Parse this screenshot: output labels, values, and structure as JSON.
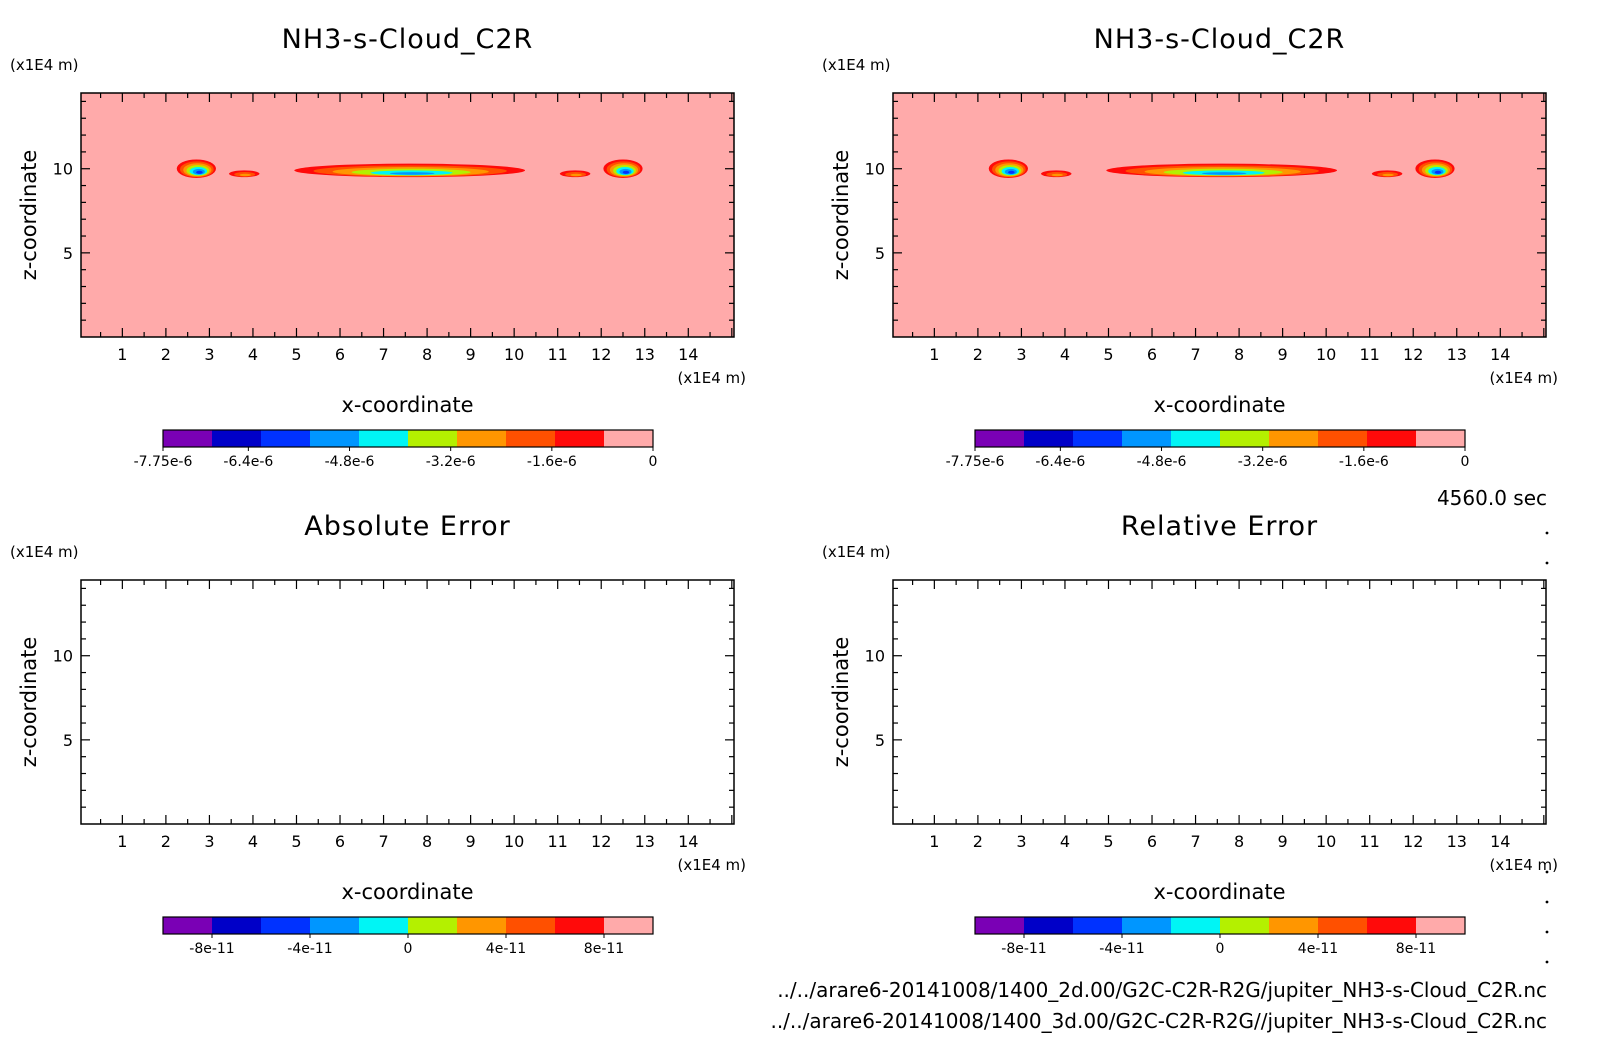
{
  "chart_data": [
    {
      "type": "heatmap",
      "title": "NH3-s-Cloud_C2R",
      "xlabel": "x-coordinate",
      "ylabel": "z-coordinate",
      "x_unit": "(x1E4 m)",
      "y_unit": "(x1E4 m)",
      "xlim": [
        0.05,
        15.05
      ],
      "ylim": [
        0,
        14.5
      ],
      "x_ticks": [
        "1",
        "2",
        "3",
        "4",
        "5",
        "6",
        "7",
        "8",
        "9",
        "10",
        "11",
        "12",
        "13",
        "14"
      ],
      "y_ticks": [
        "5",
        "10"
      ],
      "background_color": "#FFAAAA",
      "colorbar": {
        "colors": [
          "#7A00B5",
          "#0000C8",
          "#0032FF",
          "#0096FF",
          "#00F5F5",
          "#B4F000",
          "#FF9600",
          "#FF5000",
          "#FF0A0A",
          "#FFAAAA"
        ],
        "labels": [
          "-7.75e-6",
          "-6.4e-6",
          "-4.8e-6",
          "-3.2e-6",
          "-1.6e-6",
          "0"
        ],
        "range": [
          -7.75e-06,
          0
        ]
      },
      "features": [
        {
          "x": 2.7,
          "z": 10.0,
          "w": 0.9,
          "h": 1.1,
          "min_bin": 2
        },
        {
          "x": 3.8,
          "z": 9.7,
          "w": 0.7,
          "h": 0.4,
          "min_bin": 6
        },
        {
          "x": 7.6,
          "z": 9.9,
          "w": 5.3,
          "h": 0.8,
          "min_bin": 3
        },
        {
          "x": 11.4,
          "z": 9.7,
          "w": 0.7,
          "h": 0.4,
          "min_bin": 6
        },
        {
          "x": 12.5,
          "z": 10.0,
          "w": 0.9,
          "h": 1.1,
          "min_bin": 2
        }
      ]
    },
    {
      "type": "heatmap",
      "title": "NH3-s-Cloud_C2R",
      "xlabel": "x-coordinate",
      "ylabel": "z-coordinate",
      "x_unit": "(x1E4 m)",
      "y_unit": "(x1E4 m)",
      "xlim": [
        0.05,
        15.05
      ],
      "ylim": [
        0,
        14.5
      ],
      "x_ticks": [
        "1",
        "2",
        "3",
        "4",
        "5",
        "6",
        "7",
        "8",
        "9",
        "10",
        "11",
        "12",
        "13",
        "14"
      ],
      "y_ticks": [
        "5",
        "10"
      ],
      "background_color": "#FFAAAA",
      "colorbar": {
        "colors": [
          "#7A00B5",
          "#0000C8",
          "#0032FF",
          "#0096FF",
          "#00F5F5",
          "#B4F000",
          "#FF9600",
          "#FF5000",
          "#FF0A0A",
          "#FFAAAA"
        ],
        "labels": [
          "-7.75e-6",
          "-6.4e-6",
          "-4.8e-6",
          "-3.2e-6",
          "-1.6e-6",
          "0"
        ],
        "range": [
          -7.75e-06,
          0
        ]
      },
      "features": [
        {
          "x": 2.7,
          "z": 10.0,
          "w": 0.9,
          "h": 1.1,
          "min_bin": 2
        },
        {
          "x": 3.8,
          "z": 9.7,
          "w": 0.7,
          "h": 0.4,
          "min_bin": 6
        },
        {
          "x": 7.6,
          "z": 9.9,
          "w": 5.3,
          "h": 0.8,
          "min_bin": 3
        },
        {
          "x": 11.4,
          "z": 9.7,
          "w": 0.7,
          "h": 0.4,
          "min_bin": 6
        },
        {
          "x": 12.5,
          "z": 10.0,
          "w": 0.9,
          "h": 1.1,
          "min_bin": 2
        }
      ]
    },
    {
      "type": "heatmap",
      "title": "Absolute Error",
      "xlabel": "x-coordinate",
      "ylabel": "z-coordinate",
      "x_unit": "(x1E4 m)",
      "y_unit": "(x1E4 m)",
      "xlim": [
        0.05,
        15.05
      ],
      "ylim": [
        0,
        14.5
      ],
      "x_ticks": [
        "1",
        "2",
        "3",
        "4",
        "5",
        "6",
        "7",
        "8",
        "9",
        "10",
        "11",
        "12",
        "13",
        "14"
      ],
      "y_ticks": [
        "5",
        "10"
      ],
      "background_color": "#FFFFFF",
      "colorbar": {
        "colors": [
          "#7A00B5",
          "#0000C8",
          "#0032FF",
          "#0096FF",
          "#00F5F5",
          "#B4F000",
          "#FF9600",
          "#FF5000",
          "#FF0A0A",
          "#FFAAAA"
        ],
        "labels": [
          "-8e-11",
          "-4e-11",
          "0",
          "4e-11",
          "8e-11"
        ],
        "range": [
          -1e-10,
          1e-10
        ]
      },
      "features": []
    },
    {
      "type": "heatmap",
      "title": "Relative Error",
      "xlabel": "x-coordinate",
      "ylabel": "z-coordinate",
      "x_unit": "(x1E4 m)",
      "y_unit": "(x1E4 m)",
      "xlim": [
        0.05,
        15.05
      ],
      "ylim": [
        0,
        14.5
      ],
      "x_ticks": [
        "1",
        "2",
        "3",
        "4",
        "5",
        "6",
        "7",
        "8",
        "9",
        "10",
        "11",
        "12",
        "13",
        "14"
      ],
      "y_ticks": [
        "5",
        "10"
      ],
      "background_color": "#FFFFFF",
      "colorbar": {
        "colors": [
          "#7A00B5",
          "#0000C8",
          "#0032FF",
          "#0096FF",
          "#00F5F5",
          "#B4F000",
          "#FF9600",
          "#FF5000",
          "#FF0A0A",
          "#FFAAAA"
        ],
        "labels": [
          "-8e-11",
          "-4e-11",
          "0",
          "4e-11",
          "8e-11"
        ],
        "range": [
          -1e-10,
          1e-10
        ]
      },
      "features": []
    }
  ],
  "time_label": "4560.0 sec",
  "file_paths": [
    "../../arare6-20141008/1400_2d.00/G2C-C2R-R2G/jupiter_NH3-s-Cloud_C2R.nc",
    "../../arare6-20141008/1400_3d.00/G2C-C2R-R2G//jupiter_NH3-s-Cloud_C2R.nc"
  ]
}
